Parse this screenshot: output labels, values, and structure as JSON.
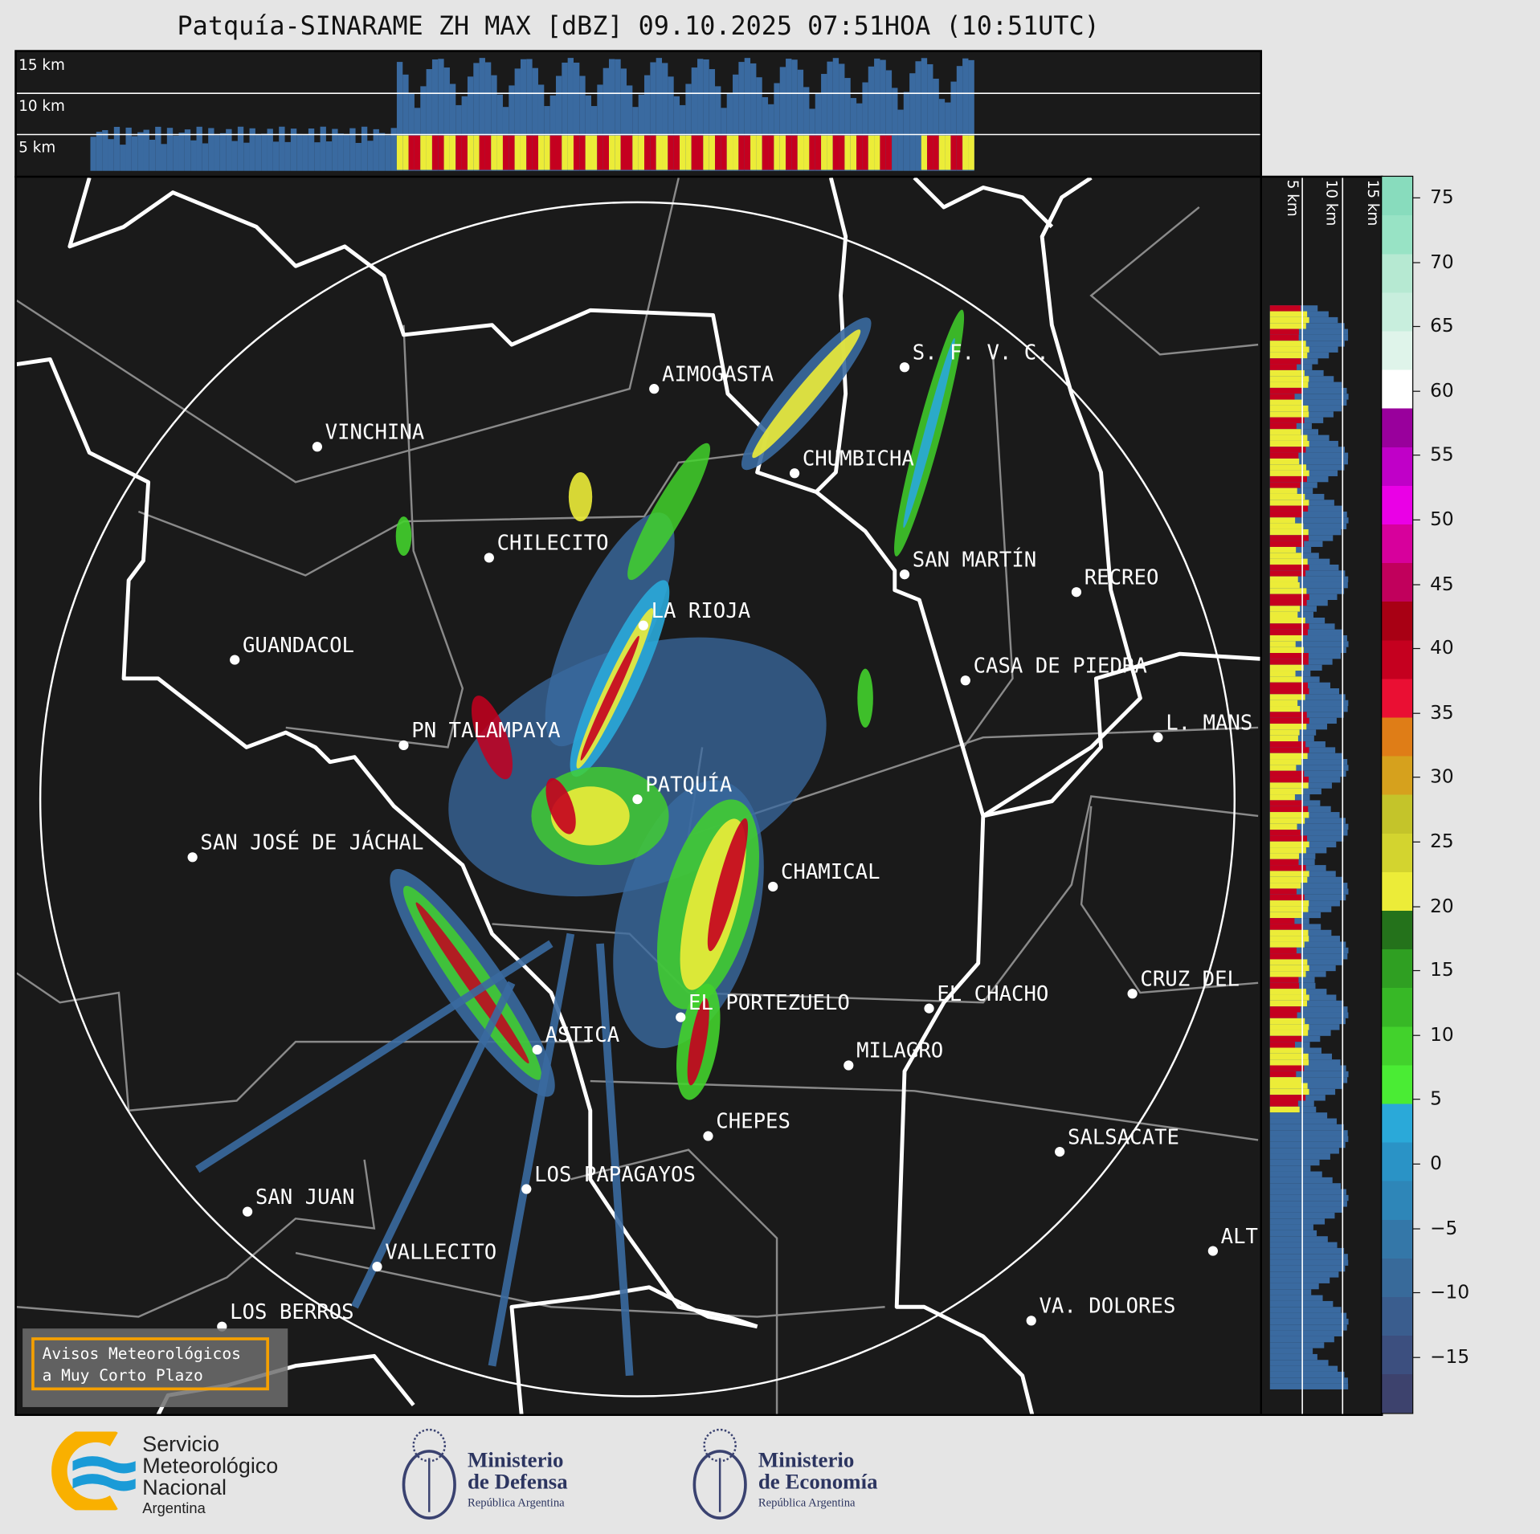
{
  "title": "Patquía-SINARAME ZH MAX [dBZ] 09.10.2025 07:51HOA (10:51UTC)",
  "top_panel": {
    "height_labels": [
      "15 km",
      "10 km",
      "5 km"
    ]
  },
  "side_panel": {
    "height_labels": [
      "5 km",
      "10 km",
      "15 km"
    ]
  },
  "colorbar": {
    "ticks": [
      "75",
      "70",
      "65",
      "60",
      "55",
      "50",
      "45",
      "40",
      "35",
      "30",
      "25",
      "20",
      "15",
      "10",
      "5",
      "0",
      "−5",
      "−10",
      "−15"
    ],
    "colors": [
      "#3d426d",
      "#3c4f7f",
      "#3a5d8e",
      "#386a9a",
      "#3477a8",
      "#2e86b8",
      "#2a93c6",
      "#2aa9d9",
      "#4aec34",
      "#42d22c",
      "#37b826",
      "#2f9f22",
      "#24721b",
      "#ecec38",
      "#d3d42f",
      "#c4c42a",
      "#d6a11d",
      "#df7d17",
      "#ea0f33",
      "#c5001f",
      "#a80014",
      "#c1005c",
      "#d7009c",
      "#ea00e6",
      "#c000c8",
      "#99009c",
      "#ffffff",
      "#dff4ea",
      "#c8eedd",
      "#b6e9d2",
      "#98e3c5",
      "#88dcbd"
    ]
  },
  "map": {
    "cities": [
      "AIMOGASTA",
      "VINCHINA",
      "S. F. V. C.",
      "CHUMBICHA",
      "CHILECITO",
      "SAN MARTÍN",
      "RECREO",
      "LA RIOJA",
      "GUANDACOL",
      "CASA DE PIEDRA",
      "L. MANS",
      "PN TALAMPAYA",
      "PATQUÍA",
      "SAN JOSÉ DE JÁCHAL",
      "CHAMICAL",
      "EL CHACHO",
      "CRUZ DEL",
      "EL PORTEZUELO",
      "MILAGRO",
      "ASTICA",
      "CHEPES",
      "SALSACATE",
      "LOS PAPAGAYOS",
      "SAN JUAN",
      "ALT",
      "VALLECITO",
      "LOS BERROS",
      "VA. DOLORES"
    ],
    "warning_box": {
      "line1": "Avisos Meteorológicos",
      "line2": "a Muy Corto Plazo"
    }
  },
  "footer": {
    "smn": {
      "line1": "Servicio",
      "line2": "Meteorológico",
      "line3": "Nacional",
      "line4": "Argentina"
    },
    "defensa": {
      "line1": "Ministerio",
      "line2": "de Defensa",
      "line3": "República Argentina"
    },
    "economia": {
      "line1": "Ministerio",
      "line2": "de Economía",
      "line3": "República Argentina"
    }
  }
}
